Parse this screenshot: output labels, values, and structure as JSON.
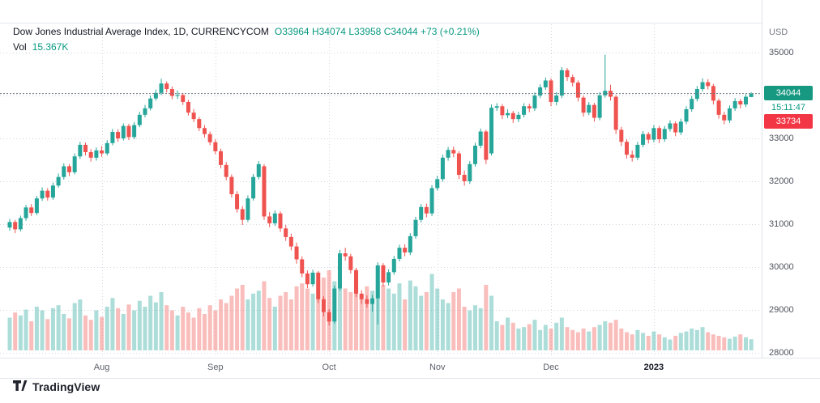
{
  "legend": {
    "title": "Dow Jones Industrial Average Index, 1D, CURRENCYCOM",
    "ohlc": "O33964 H34074 L33958 C34044 +73 (+0.21%)",
    "vol_label": "Vol",
    "vol_value": "15.367K"
  },
  "badges": {
    "last_price": "34044",
    "countdown": "15:11:47",
    "alert_price": "33734"
  },
  "attribution": {
    "text": "TradingView"
  },
  "chart_data": {
    "type": "candlestick",
    "title": "Dow Jones Industrial Average Index",
    "interval": "1D",
    "exchange": "CURRENCYCOM",
    "currency": "USD",
    "legend_last": {
      "open": 33964,
      "high": 34074,
      "low": 33958,
      "close": 34044,
      "change": 73,
      "change_pct": 0.21,
      "volume_label": "15.367K"
    },
    "last": {
      "close": 34044
    },
    "alert_level": 33734,
    "y_axis": {
      "min": 28000,
      "max": 35000,
      "tick_step": 1000,
      "ticks": [
        35000,
        34000,
        33000,
        32000,
        31000,
        30000,
        29000,
        28000
      ]
    },
    "x_axis": {
      "labels": [
        {
          "text": "Aug",
          "i": 17,
          "major": false
        },
        {
          "text": "Sep",
          "i": 38,
          "major": false
        },
        {
          "text": "Oct",
          "i": 59,
          "major": false
        },
        {
          "text": "Nov",
          "i": 79,
          "major": false
        },
        {
          "text": "Dec",
          "i": 100,
          "major": false
        },
        {
          "text": "2023",
          "i": 119,
          "major": true
        }
      ]
    },
    "colors": {
      "up": "#26a69a",
      "down": "#ef5350",
      "accent_text": "#089981",
      "alert": "#f23645"
    },
    "candles_format": [
      "open",
      "high",
      "low",
      "close",
      "volume_k"
    ],
    "candles": [
      [
        30920,
        31120,
        30850,
        31050,
        45
      ],
      [
        31050,
        31100,
        30790,
        30880,
        52
      ],
      [
        30880,
        31200,
        30830,
        31140,
        48
      ],
      [
        31140,
        31450,
        31080,
        31390,
        56
      ],
      [
        31390,
        31470,
        31190,
        31260,
        40
      ],
      [
        31260,
        31660,
        31210,
        31600,
        60
      ],
      [
        31600,
        31860,
        31540,
        31780,
        55
      ],
      [
        31780,
        31840,
        31550,
        31620,
        43
      ],
      [
        31620,
        31970,
        31570,
        31900,
        58
      ],
      [
        31900,
        32180,
        31850,
        32100,
        62
      ],
      [
        32100,
        32420,
        32040,
        32350,
        50
      ],
      [
        32350,
        32400,
        32120,
        32210,
        44
      ],
      [
        32210,
        32650,
        32160,
        32580,
        65
      ],
      [
        32580,
        32920,
        32520,
        32850,
        70
      ],
      [
        32850,
        32900,
        32600,
        32680,
        48
      ],
      [
        32680,
        32750,
        32460,
        32550,
        42
      ],
      [
        32550,
        32790,
        32480,
        32720,
        55
      ],
      [
        32720,
        32820,
        32570,
        32650,
        46
      ],
      [
        32650,
        32960,
        32600,
        32890,
        60
      ],
      [
        32890,
        33220,
        32840,
        33150,
        72
      ],
      [
        33150,
        33210,
        32920,
        33000,
        58
      ],
      [
        33000,
        33350,
        32950,
        33290,
        50
      ],
      [
        33290,
        33340,
        32960,
        33030,
        63
      ],
      [
        33030,
        33380,
        32980,
        33310,
        55
      ],
      [
        33310,
        33620,
        33260,
        33550,
        68
      ],
      [
        33550,
        33780,
        33490,
        33700,
        60
      ],
      [
        33700,
        34000,
        33650,
        33930,
        75
      ],
      [
        33930,
        34140,
        33880,
        34060,
        66
      ],
      [
        34060,
        34390,
        34010,
        34280,
        80
      ],
      [
        34280,
        34330,
        34070,
        34150,
        62
      ],
      [
        34150,
        34210,
        33910,
        33990,
        55
      ],
      [
        33990,
        34120,
        33920,
        34010,
        48
      ],
      [
        34010,
        34060,
        33780,
        33850,
        60
      ],
      [
        33850,
        33900,
        33530,
        33600,
        52
      ],
      [
        33600,
        33680,
        33380,
        33450,
        45
      ],
      [
        33450,
        33500,
        33170,
        33240,
        58
      ],
      [
        33240,
        33310,
        33020,
        33100,
        50
      ],
      [
        33100,
        33160,
        32840,
        32910,
        62
      ],
      [
        32910,
        32980,
        32630,
        32700,
        55
      ],
      [
        32700,
        32760,
        32300,
        32380,
        70
      ],
      [
        32380,
        32450,
        32020,
        32100,
        65
      ],
      [
        32100,
        32160,
        31620,
        31700,
        75
      ],
      [
        31700,
        31770,
        31270,
        31350,
        85
      ],
      [
        31350,
        31420,
        30980,
        31100,
        90
      ],
      [
        31100,
        31670,
        31050,
        31600,
        70
      ],
      [
        31600,
        32170,
        31550,
        32100,
        78
      ],
      [
        32100,
        32470,
        32040,
        32400,
        82
      ],
      [
        32350,
        32400,
        31100,
        31180,
        95
      ],
      [
        31180,
        31280,
        30930,
        31020,
        72
      ],
      [
        31020,
        31320,
        30960,
        31250,
        60
      ],
      [
        31250,
        31300,
        30820,
        30900,
        75
      ],
      [
        30900,
        30980,
        30610,
        30700,
        80
      ],
      [
        30700,
        30780,
        30390,
        30480,
        70
      ],
      [
        30480,
        30570,
        30080,
        30180,
        88
      ],
      [
        30180,
        30250,
        29760,
        29850,
        92
      ],
      [
        29850,
        29920,
        29510,
        29600,
        85
      ],
      [
        29600,
        29940,
        29540,
        29870,
        78
      ],
      [
        29870,
        29910,
        29160,
        29250,
        95
      ],
      [
        29250,
        29320,
        28850,
        28950,
        100
      ],
      [
        28950,
        29020,
        28640,
        28730,
        110
      ],
      [
        28730,
        29570,
        28680,
        29500,
        95
      ],
      [
        29500,
        30400,
        29450,
        30320,
        105
      ],
      [
        30320,
        30450,
        30150,
        30250,
        85
      ],
      [
        30250,
        30310,
        29850,
        29930,
        80
      ],
      [
        29930,
        29980,
        29300,
        29380,
        90
      ],
      [
        29380,
        29460,
        29140,
        29250,
        75
      ],
      [
        29250,
        29340,
        29050,
        29140,
        88
      ],
      [
        29140,
        29350,
        28960,
        29270,
        82
      ],
      [
        29270,
        30110,
        28660,
        30040,
        115
      ],
      [
        30040,
        30090,
        29550,
        29640,
        90
      ],
      [
        29640,
        29950,
        29570,
        29880,
        85
      ],
      [
        29880,
        30260,
        29820,
        30190,
        78
      ],
      [
        30190,
        30520,
        30130,
        30450,
        92
      ],
      [
        30450,
        30530,
        30250,
        30340,
        70
      ],
      [
        30340,
        30790,
        30280,
        30720,
        96
      ],
      [
        30720,
        31170,
        30660,
        31100,
        88
      ],
      [
        31100,
        31470,
        31040,
        31400,
        75
      ],
      [
        31400,
        31480,
        31160,
        31250,
        80
      ],
      [
        31250,
        31910,
        31190,
        31840,
        105
      ],
      [
        31840,
        32130,
        31780,
        32050,
        85
      ],
      [
        32050,
        32620,
        31990,
        32550,
        70
      ],
      [
        32550,
        32800,
        32480,
        32730,
        65
      ],
      [
        32730,
        32810,
        32560,
        32650,
        80
      ],
      [
        32650,
        32700,
        32050,
        32150,
        85
      ],
      [
        32150,
        32250,
        31900,
        32000,
        60
      ],
      [
        32000,
        32470,
        31940,
        32400,
        55
      ],
      [
        32400,
        32900,
        32340,
        32830,
        62
      ],
      [
        32830,
        33230,
        32770,
        33160,
        58
      ],
      [
        33160,
        33200,
        32400,
        32500,
        90
      ],
      [
        32650,
        33790,
        32600,
        33715,
        75
      ],
      [
        33715,
        33820,
        33640,
        33750,
        40
      ],
      [
        33750,
        33800,
        33450,
        33540,
        35
      ],
      [
        33540,
        33680,
        33470,
        33590,
        45
      ],
      [
        33590,
        33640,
        33360,
        33450,
        38
      ],
      [
        33450,
        33620,
        33380,
        33550,
        30
      ],
      [
        33550,
        33820,
        33490,
        33750,
        32
      ],
      [
        33750,
        33810,
        33610,
        33700,
        36
      ],
      [
        33700,
        34070,
        33640,
        34000,
        42
      ],
      [
        34000,
        34260,
        33940,
        34190,
        28
      ],
      [
        34190,
        34420,
        34130,
        34350,
        35
      ],
      [
        34350,
        34400,
        33750,
        33850,
        30
      ],
      [
        33850,
        34080,
        33770,
        34000,
        38
      ],
      [
        34000,
        34660,
        33940,
        34590,
        45
      ],
      [
        34590,
        34640,
        34340,
        34430,
        32
      ],
      [
        34430,
        34490,
        34210,
        34300,
        28
      ],
      [
        34300,
        34350,
        33860,
        33950,
        25
      ],
      [
        33950,
        34000,
        33510,
        33600,
        30
      ],
      [
        33600,
        33850,
        33540,
        33780,
        26
      ],
      [
        33780,
        33830,
        33390,
        33480,
        32
      ],
      [
        33480,
        34080,
        33420,
        34005,
        35
      ],
      [
        34005,
        34950,
        33950,
        34110,
        40
      ],
      [
        34110,
        34250,
        33880,
        33970,
        38
      ],
      [
        33970,
        34010,
        33100,
        33200,
        42
      ],
      [
        33200,
        33270,
        32820,
        32920,
        30
      ],
      [
        32920,
        32980,
        32530,
        32620,
        25
      ],
      [
        32620,
        32720,
        32460,
        32550,
        22
      ],
      [
        32550,
        32920,
        32490,
        32850,
        28
      ],
      [
        32850,
        33170,
        32790,
        33100,
        24
      ],
      [
        33100,
        33150,
        32880,
        32970,
        20
      ],
      [
        32970,
        33310,
        32910,
        33240,
        26
      ],
      [
        33240,
        33290,
        32890,
        32980,
        22
      ],
      [
        32980,
        33290,
        32920,
        33220,
        18
      ],
      [
        33220,
        33420,
        33160,
        33350,
        15
      ],
      [
        33350,
        33400,
        33050,
        33140,
        20
      ],
      [
        33140,
        33460,
        33080,
        33390,
        24
      ],
      [
        33390,
        33750,
        33330,
        33680,
        26
      ],
      [
        33680,
        33990,
        33620,
        33920,
        30
      ],
      [
        33920,
        34220,
        33860,
        34150,
        28
      ],
      [
        34150,
        34400,
        34090,
        34310,
        32
      ],
      [
        34310,
        34380,
        34140,
        34220,
        25
      ],
      [
        34220,
        34270,
        33790,
        33880,
        22
      ],
      [
        33880,
        33930,
        33460,
        33550,
        20
      ],
      [
        33550,
        33620,
        33330,
        33420,
        18
      ],
      [
        33420,
        33770,
        33360,
        33700,
        16
      ],
      [
        33700,
        33940,
        33640,
        33870,
        19
      ],
      [
        33870,
        33920,
        33700,
        33790,
        22
      ],
      [
        33790,
        34030,
        33730,
        33971,
        18
      ],
      [
        33964,
        34074,
        33958,
        34044,
        15.367
      ]
    ]
  }
}
